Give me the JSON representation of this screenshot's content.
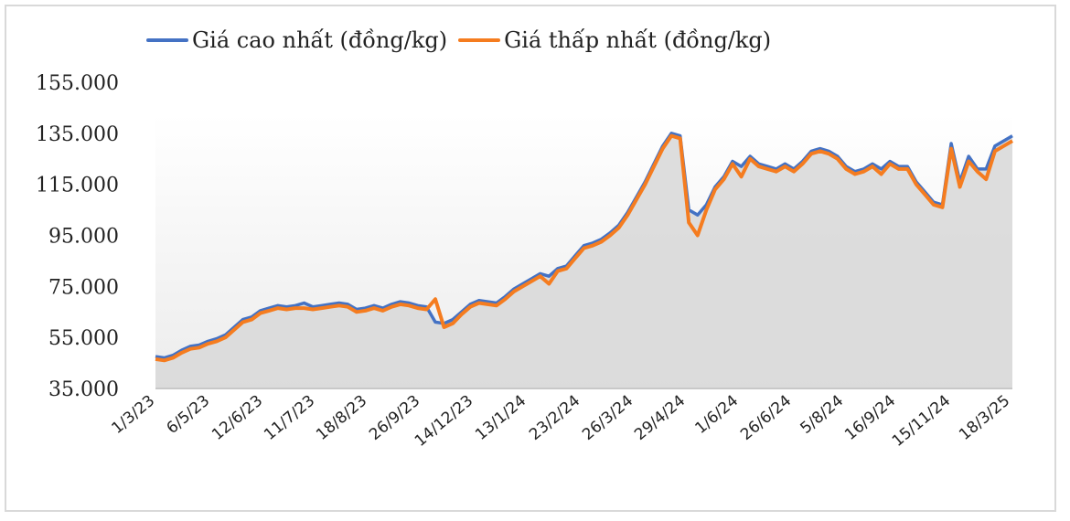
{
  "chart_data": {
    "type": "area",
    "title": "",
    "xlabel": "",
    "ylabel": "",
    "ylim": [
      35000,
      155000
    ],
    "grid": false,
    "legend_position": "top",
    "y_ticks": [
      "155.000",
      "135.000",
      "115.000",
      "95.000",
      "75.000",
      "55.000",
      "35.000"
    ],
    "y_tick_values": [
      155000,
      135000,
      115000,
      95000,
      75000,
      55000,
      35000
    ],
    "x_tick_labels": [
      "1/3/23",
      "6/5/23",
      "12/6/23",
      "11/7/23",
      "18/8/23",
      "26/9/23",
      "14/12/23",
      "13/1/24",
      "23/2/24",
      "26/3/24",
      "29/4/24",
      "1/6/24",
      "26/6/24",
      "5/8/24",
      "16/9/24",
      "15/11/24",
      "18/3/25"
    ],
    "series": [
      {
        "name": "Giá cao nhất (đồng/kg)",
        "color": "#4472c4",
        "values": [
          47500,
          47000,
          48000,
          50000,
          51500,
          52000,
          53500,
          54500,
          56000,
          59000,
          62000,
          63000,
          65500,
          66500,
          67500,
          67000,
          67500,
          68500,
          67000,
          67500,
          68000,
          68500,
          68000,
          66000,
          66500,
          67500,
          66500,
          68000,
          69000,
          68500,
          67500,
          67000,
          61000,
          60500,
          62000,
          65000,
          68000,
          69500,
          69000,
          68500,
          71000,
          74000,
          76000,
          78000,
          80000,
          79000,
          82000,
          83000,
          87000,
          91000,
          92000,
          93500,
          96000,
          99000,
          104000,
          110000,
          116000,
          123000,
          130000,
          135000,
          134000,
          105000,
          103000,
          107000,
          114000,
          118000,
          124000,
          122000,
          126000,
          123000,
          122000,
          121000,
          123000,
          121000,
          124000,
          128000,
          129000,
          128000,
          126000,
          122000,
          120000,
          121000,
          123000,
          121000,
          124000,
          122000,
          122000,
          116000,
          112000,
          108000,
          107000,
          131000,
          116000,
          126000,
          121000,
          121000,
          130000,
          132000,
          134000
        ]
      },
      {
        "name": "Giá thấp nhất (đồng/kg)",
        "color": "#f57c1f",
        "values": [
          46500,
          46000,
          47000,
          49000,
          50500,
          51000,
          52500,
          53500,
          55000,
          58000,
          61000,
          62000,
          64500,
          65500,
          66500,
          66000,
          66500,
          66500,
          66000,
          66500,
          67000,
          67500,
          67000,
          65000,
          65500,
          66500,
          65500,
          67000,
          68000,
          67500,
          66500,
          66000,
          70000,
          59000,
          60500,
          64000,
          67000,
          68500,
          68000,
          67500,
          70000,
          73000,
          75000,
          77000,
          79000,
          76000,
          81000,
          82000,
          86000,
          90000,
          91000,
          92500,
          95000,
          98000,
          103000,
          109000,
          115000,
          122000,
          129000,
          134000,
          133000,
          100000,
          95000,
          105000,
          113000,
          117000,
          123000,
          118000,
          125000,
          122000,
          121000,
          120000,
          122000,
          120000,
          123000,
          127000,
          128000,
          127000,
          125000,
          121000,
          119000,
          120000,
          122000,
          119000,
          123000,
          121000,
          121000,
          115000,
          111000,
          107000,
          106000,
          129000,
          114000,
          124000,
          120000,
          117000,
          128000,
          130000,
          132000
        ]
      }
    ]
  },
  "legend": {
    "item1": "Giá cao nhất (đồng/kg)",
    "item2": "Giá thấp nhất (đồng/kg)"
  }
}
